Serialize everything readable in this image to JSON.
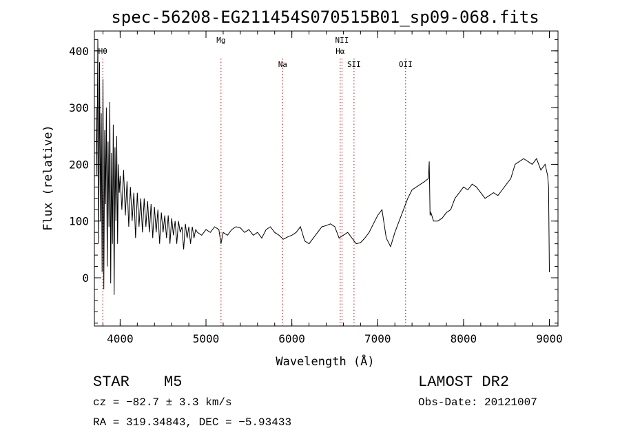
{
  "chart_data": {
    "type": "line",
    "title": "spec-56208-EG211454S070515B01_sp09-068.fits",
    "xlabel": "Wavelength (Å)",
    "ylabel": "Flux (relative)",
    "xlim": [
      3700,
      9100
    ],
    "ylim": [
      -85,
      435
    ],
    "xticks": [
      4000,
      5000,
      6000,
      7000,
      8000,
      9000
    ],
    "yticks": [
      0,
      100,
      200,
      300,
      400
    ],
    "grid": false,
    "line_color": "#000000",
    "marker_color": "#cc0000",
    "lines": [
      {
        "label": "Hθ",
        "wavelength": 3798,
        "row": 1
      },
      {
        "label": "Mg",
        "wavelength": 5175,
        "row": 0
      },
      {
        "label": "Na",
        "wavelength": 5893,
        "row": 2
      },
      {
        "label": "NII",
        "wavelength": 6584,
        "row": 0
      },
      {
        "label": "Hα",
        "wavelength": 6563,
        "row": 1
      },
      {
        "label": "SII",
        "wavelength": 6724,
        "row": 2
      },
      {
        "label": "OII",
        "wavelength": 7325,
        "row": 2
      }
    ],
    "spectrum": {
      "x": [
        3720,
        3730,
        3740,
        3750,
        3760,
        3770,
        3780,
        3790,
        3800,
        3810,
        3820,
        3830,
        3840,
        3850,
        3860,
        3870,
        3880,
        3890,
        3900,
        3910,
        3920,
        3930,
        3940,
        3950,
        3960,
        3970,
        3980,
        3990,
        4000,
        4020,
        4040,
        4060,
        4080,
        4100,
        4120,
        4140,
        4160,
        4180,
        4200,
        4220,
        4240,
        4260,
        4280,
        4300,
        4320,
        4340,
        4360,
        4380,
        4400,
        4420,
        4440,
        4460,
        4480,
        4500,
        4520,
        4540,
        4560,
        4580,
        4600,
        4620,
        4640,
        4660,
        4680,
        4700,
        4720,
        4740,
        4760,
        4780,
        4800,
        4820,
        4840,
        4860,
        4880,
        4900,
        4950,
        5000,
        5050,
        5100,
        5150,
        5175,
        5200,
        5250,
        5300,
        5350,
        5400,
        5450,
        5500,
        5550,
        5600,
        5650,
        5700,
        5750,
        5800,
        5850,
        5900,
        5950,
        6000,
        6050,
        6100,
        6150,
        6200,
        6250,
        6300,
        6350,
        6400,
        6450,
        6500,
        6550,
        6600,
        6650,
        6700,
        6750,
        6800,
        6850,
        6900,
        6950,
        7000,
        7050,
        7100,
        7150,
        7200,
        7250,
        7300,
        7350,
        7400,
        7450,
        7500,
        7550,
        7590,
        7600,
        7610,
        7620,
        7650,
        7700,
        7750,
        7800,
        7850,
        7900,
        7950,
        8000,
        8050,
        8100,
        8150,
        8200,
        8250,
        8300,
        8350,
        8400,
        8450,
        8500,
        8550,
        8600,
        8650,
        8700,
        8750,
        8800,
        8850,
        8900,
        8950,
        8980,
        8990,
        9000
      ],
      "y": [
        300,
        180,
        420,
        60,
        380,
        100,
        290,
        10,
        350,
        -20,
        260,
        130,
        300,
        20,
        240,
        90,
        310,
        -10,
        220,
        60,
        270,
        -30,
        230,
        100,
        250,
        60,
        200,
        150,
        180,
        120,
        190,
        110,
        170,
        90,
        160,
        100,
        150,
        70,
        150,
        90,
        140,
        80,
        140,
        90,
        135,
        80,
        130,
        70,
        125,
        80,
        120,
        60,
        115,
        80,
        110,
        70,
        110,
        60,
        105,
        75,
        100,
        60,
        100,
        80,
        90,
        50,
        95,
        70,
        90,
        60,
        90,
        70,
        85,
        80,
        75,
        85,
        80,
        90,
        85,
        60,
        80,
        75,
        85,
        90,
        88,
        80,
        85,
        75,
        80,
        70,
        85,
        90,
        80,
        75,
        68,
        72,
        75,
        80,
        90,
        65,
        60,
        70,
        80,
        90,
        92,
        95,
        90,
        70,
        75,
        80,
        70,
        60,
        62,
        70,
        80,
        95,
        110,
        120,
        70,
        55,
        80,
        100,
        120,
        140,
        155,
        160,
        165,
        170,
        175,
        205,
        110,
        115,
        100,
        100,
        105,
        115,
        120,
        140,
        150,
        160,
        155,
        165,
        160,
        150,
        140,
        145,
        150,
        145,
        155,
        165,
        175,
        200,
        205,
        210,
        205,
        200,
        210,
        190,
        200,
        180,
        160,
        10
      ]
    },
    "bottom_text": {
      "class_label": "STAR",
      "subclass": "M5",
      "survey": "LAMOST DR2",
      "cz": "cz = −82.7 ± 3.3 km/s",
      "obs_date": "Obs-Date: 20121007",
      "coords": "RA = 319.34843, DEC =  −5.93433"
    }
  }
}
